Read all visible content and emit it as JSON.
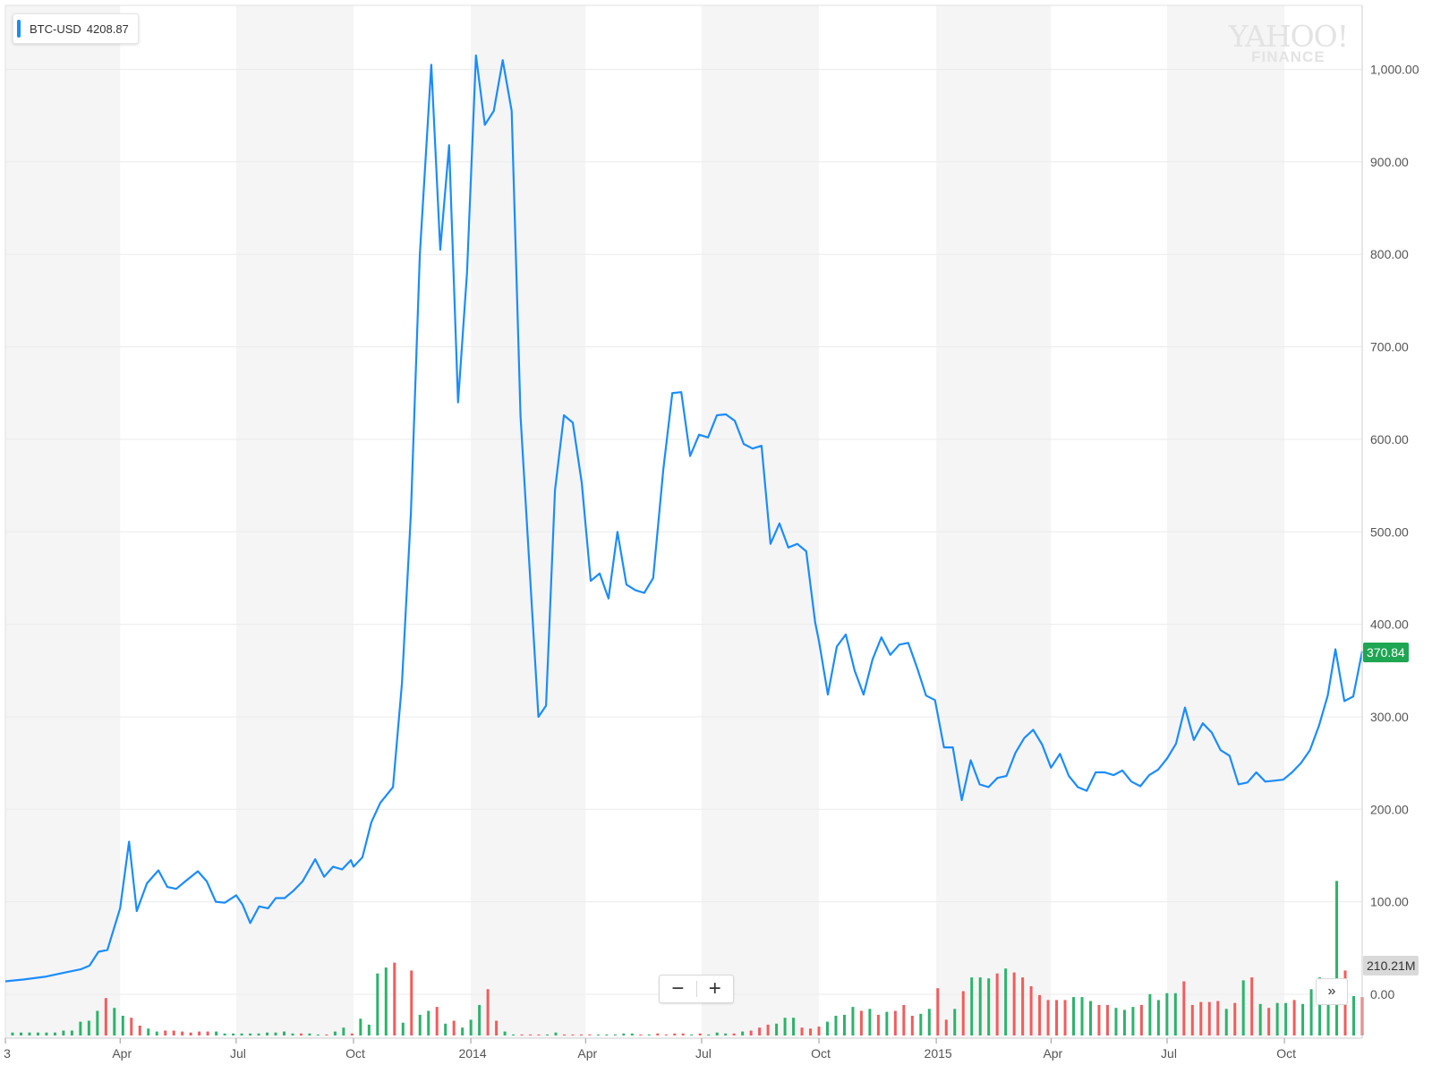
{
  "legend": {
    "symbol": "BTC-USD",
    "price": "4208.87"
  },
  "watermark": {
    "brand_top": "YAHOO!",
    "brand_bottom": "FINANCE"
  },
  "current_price_label": "370.84",
  "current_volume_label": "210.21M",
  "controls": {
    "zoom_out": "−",
    "zoom_in": "+",
    "expand": "»"
  },
  "colors": {
    "line": "#1a8cff",
    "volume_up": "#2db36b",
    "volume_down": "#f25c5c",
    "price_tag": "#1fa653",
    "shade": "#f5f5f5",
    "grid": "#ebebeb"
  },
  "chart_data": {
    "type": "line",
    "symbol": "BTC-USD",
    "y_axis": {
      "ticks": [
        "0.00",
        "100.00",
        "200.00",
        "300.00",
        "400.00",
        "500.00",
        "600.00",
        "700.00",
        "800.00",
        "900.00",
        "1,000.00"
      ],
      "ylim": [
        0,
        1050
      ]
    },
    "x_axis": {
      "ticks": [
        {
          "label": "3",
          "date": "2013-01-01"
        },
        {
          "label": "Apr",
          "date": "2013-04-01"
        },
        {
          "label": "Jul",
          "date": "2013-07-01"
        },
        {
          "label": "Oct",
          "date": "2013-10-01"
        },
        {
          "label": "2014",
          "date": "2014-01-01"
        },
        {
          "label": "Apr",
          "date": "2014-04-01"
        },
        {
          "label": "Jul",
          "date": "2014-07-01"
        },
        {
          "label": "Oct",
          "date": "2014-10-01"
        },
        {
          "label": "2015",
          "date": "2015-01-01"
        },
        {
          "label": "Apr",
          "date": "2015-04-01"
        },
        {
          "label": "Jul",
          "date": "2015-07-01"
        },
        {
          "label": "Oct",
          "date": "2015-10-01"
        }
      ]
    },
    "series": [
      {
        "values": [
          [
            "2013-01-01",
            14
          ],
          [
            "2013-01-15",
            16
          ],
          [
            "2013-02-01",
            19
          ],
          [
            "2013-02-15",
            23
          ],
          [
            "2013-03-01",
            27
          ],
          [
            "2013-03-08",
            31
          ],
          [
            "2013-03-15",
            46
          ],
          [
            "2013-03-22",
            48
          ],
          [
            "2013-04-01",
            93
          ],
          [
            "2013-04-08",
            165
          ],
          [
            "2013-04-14",
            90
          ],
          [
            "2013-04-22",
            120
          ],
          [
            "2013-05-01",
            134
          ],
          [
            "2013-05-08",
            116
          ],
          [
            "2013-05-15",
            114
          ],
          [
            "2013-05-22",
            122
          ],
          [
            "2013-06-01",
            133
          ],
          [
            "2013-06-08",
            122
          ],
          [
            "2013-06-15",
            100
          ],
          [
            "2013-06-22",
            99
          ],
          [
            "2013-07-01",
            107
          ],
          [
            "2013-07-06",
            97
          ],
          [
            "2013-07-12",
            77
          ],
          [
            "2013-07-19",
            95
          ],
          [
            "2013-07-26",
            93
          ],
          [
            "2013-08-01",
            104
          ],
          [
            "2013-08-08",
            104
          ],
          [
            "2013-08-15",
            112
          ],
          [
            "2013-08-22",
            122
          ],
          [
            "2013-09-01",
            146
          ],
          [
            "2013-09-08",
            127
          ],
          [
            "2013-09-15",
            138
          ],
          [
            "2013-09-22",
            135
          ],
          [
            "2013-09-29",
            145
          ],
          [
            "2013-10-01",
            138
          ],
          [
            "2013-10-08",
            148
          ],
          [
            "2013-10-15",
            186
          ],
          [
            "2013-10-22",
            207
          ],
          [
            "2013-11-01",
            224
          ],
          [
            "2013-11-08",
            336
          ],
          [
            "2013-11-15",
            520
          ],
          [
            "2013-11-22",
            800
          ],
          [
            "2013-12-01",
            1005
          ],
          [
            "2013-12-08",
            805
          ],
          [
            "2013-12-15",
            918
          ],
          [
            "2013-12-22",
            640
          ],
          [
            "2013-12-29",
            780
          ],
          [
            "2014-01-05",
            1015
          ],
          [
            "2014-01-12",
            940
          ],
          [
            "2014-01-19",
            955
          ],
          [
            "2014-01-26",
            1010
          ],
          [
            "2014-02-02",
            955
          ],
          [
            "2014-02-09",
            625
          ],
          [
            "2014-02-23",
            300
          ],
          [
            "2014-03-01",
            312
          ],
          [
            "2014-03-08",
            545
          ],
          [
            "2014-03-15",
            626
          ],
          [
            "2014-03-22",
            618
          ],
          [
            "2014-03-29",
            553
          ],
          [
            "2014-04-05",
            447
          ],
          [
            "2014-04-12",
            455
          ],
          [
            "2014-04-19",
            428
          ],
          [
            "2014-04-26",
            500
          ],
          [
            "2014-05-03",
            443
          ],
          [
            "2014-05-10",
            437
          ],
          [
            "2014-05-17",
            434
          ],
          [
            "2014-05-24",
            450
          ],
          [
            "2014-06-01",
            568
          ],
          [
            "2014-06-08",
            650
          ],
          [
            "2014-06-15",
            651
          ],
          [
            "2014-06-22",
            582
          ],
          [
            "2014-06-29",
            605
          ],
          [
            "2014-07-06",
            602
          ],
          [
            "2014-07-13",
            626
          ],
          [
            "2014-07-20",
            627
          ],
          [
            "2014-07-27",
            620
          ],
          [
            "2014-08-03",
            595
          ],
          [
            "2014-08-10",
            590
          ],
          [
            "2014-08-17",
            593
          ],
          [
            "2014-08-24",
            487
          ],
          [
            "2014-08-31",
            509
          ],
          [
            "2014-09-07",
            483
          ],
          [
            "2014-09-14",
            487
          ],
          [
            "2014-09-21",
            479
          ],
          [
            "2014-09-28",
            402
          ],
          [
            "2014-10-01",
            382
          ],
          [
            "2014-10-08",
            324
          ],
          [
            "2014-10-15",
            376
          ],
          [
            "2014-10-22",
            389
          ],
          [
            "2014-10-29",
            350
          ],
          [
            "2014-11-05",
            324
          ],
          [
            "2014-11-12",
            362
          ],
          [
            "2014-11-19",
            386
          ],
          [
            "2014-11-26",
            367
          ],
          [
            "2014-12-03",
            378
          ],
          [
            "2014-12-10",
            380
          ],
          [
            "2014-12-17",
            353
          ],
          [
            "2014-12-24",
            323
          ],
          [
            "2014-12-31",
            318
          ],
          [
            "2015-01-07",
            267
          ],
          [
            "2015-01-14",
            267
          ],
          [
            "2015-01-21",
            210
          ],
          [
            "2015-01-28",
            253
          ],
          [
            "2015-02-04",
            227
          ],
          [
            "2015-02-11",
            224
          ],
          [
            "2015-02-18",
            234
          ],
          [
            "2015-02-25",
            236
          ],
          [
            "2015-03-04",
            261
          ],
          [
            "2015-03-11",
            277
          ],
          [
            "2015-03-18",
            286
          ],
          [
            "2015-03-25",
            270
          ],
          [
            "2015-04-01",
            245
          ],
          [
            "2015-04-08",
            260
          ],
          [
            "2015-04-15",
            236
          ],
          [
            "2015-04-22",
            224
          ],
          [
            "2015-04-29",
            220
          ],
          [
            "2015-05-06",
            240
          ],
          [
            "2015-05-13",
            240
          ],
          [
            "2015-05-20",
            237
          ],
          [
            "2015-05-27",
            242
          ],
          [
            "2015-06-03",
            230
          ],
          [
            "2015-06-10",
            225
          ],
          [
            "2015-06-17",
            237
          ],
          [
            "2015-06-24",
            243
          ],
          [
            "2015-07-01",
            255
          ],
          [
            "2015-07-08",
            271
          ],
          [
            "2015-07-15",
            310
          ],
          [
            "2015-07-22",
            275
          ],
          [
            "2015-07-29",
            293
          ],
          [
            "2015-08-05",
            283
          ],
          [
            "2015-08-12",
            264
          ],
          [
            "2015-08-19",
            258
          ],
          [
            "2015-08-26",
            227
          ],
          [
            "2015-09-02",
            229
          ],
          [
            "2015-09-09",
            240
          ],
          [
            "2015-09-16",
            230
          ],
          [
            "2015-09-23",
            231
          ],
          [
            "2015-09-30",
            232
          ],
          [
            "2015-10-07",
            240
          ],
          [
            "2015-10-14",
            250
          ],
          [
            "2015-10-21",
            264
          ],
          [
            "2015-10-28",
            290
          ],
          [
            "2015-11-04",
            323
          ],
          [
            "2015-11-10",
            373
          ],
          [
            "2015-11-17",
            317
          ],
          [
            "2015-11-24",
            322
          ],
          [
            "2015-12-01",
            370.84
          ]
        ]
      }
    ],
    "volume": [
      [
        0.3,
        "up"
      ],
      [
        0.3,
        "up"
      ],
      [
        0.3,
        "up"
      ],
      [
        0.3,
        "up"
      ],
      [
        0.3,
        "up"
      ],
      [
        0.3,
        "up"
      ],
      [
        0.5,
        "up"
      ],
      [
        0.5,
        "up"
      ],
      [
        1.4,
        "up"
      ],
      [
        1.5,
        "up"
      ],
      [
        2.5,
        "up"
      ],
      [
        3.8,
        "down"
      ],
      [
        2.8,
        "up"
      ],
      [
        2.0,
        "up"
      ],
      [
        1.8,
        "down"
      ],
      [
        1.0,
        "down"
      ],
      [
        0.7,
        "up"
      ],
      [
        0.4,
        "up"
      ],
      [
        0.5,
        "down"
      ],
      [
        0.5,
        "down"
      ],
      [
        0.4,
        "down"
      ],
      [
        0.3,
        "down"
      ],
      [
        0.4,
        "down"
      ],
      [
        0.4,
        "down"
      ],
      [
        0.4,
        "up"
      ],
      [
        0.2,
        "up"
      ],
      [
        0.2,
        "up"
      ],
      [
        0.2,
        "up"
      ],
      [
        0.2,
        "up"
      ],
      [
        0.2,
        "up"
      ],
      [
        0.3,
        "up"
      ],
      [
        0.3,
        "up"
      ],
      [
        0.4,
        "up"
      ],
      [
        0.2,
        "up"
      ],
      [
        0.2,
        "down"
      ],
      [
        0.2,
        "up"
      ],
      [
        0.1,
        "up"
      ],
      [
        0.1,
        "down"
      ],
      [
        0.4,
        "up"
      ],
      [
        0.8,
        "up"
      ],
      [
        0.2,
        "down"
      ],
      [
        1.7,
        "up"
      ],
      [
        1.1,
        "up"
      ],
      [
        6.3,
        "up"
      ],
      [
        6.9,
        "up"
      ],
      [
        7.4,
        "down"
      ],
      [
        1.3,
        "up"
      ],
      [
        6.6,
        "down"
      ],
      [
        2.1,
        "up"
      ],
      [
        2.5,
        "up"
      ],
      [
        2.9,
        "down"
      ],
      [
        1.2,
        "up"
      ],
      [
        1.5,
        "down"
      ],
      [
        0.8,
        "up"
      ],
      [
        1.6,
        "up"
      ],
      [
        3.1,
        "up"
      ],
      [
        4.7,
        "down"
      ],
      [
        1.5,
        "down"
      ],
      [
        0.4,
        "up"
      ],
      [
        0.1,
        "up"
      ],
      [
        0.1,
        "down"
      ],
      [
        0.1,
        "down"
      ],
      [
        0.1,
        "down"
      ],
      [
        0.1,
        "up"
      ],
      [
        0.3,
        "up"
      ],
      [
        0.1,
        "down"
      ],
      [
        0.1,
        "down"
      ],
      [
        0.1,
        "down"
      ],
      [
        0.1,
        "down"
      ],
      [
        0.1,
        "up"
      ],
      [
        0.1,
        "up"
      ],
      [
        0.1,
        "up"
      ],
      [
        0.2,
        "up"
      ],
      [
        0.2,
        "up"
      ],
      [
        0.1,
        "down"
      ],
      [
        0.1,
        "up"
      ],
      [
        0.2,
        "down"
      ],
      [
        0.1,
        "down"
      ],
      [
        0.2,
        "down"
      ],
      [
        0.2,
        "down"
      ],
      [
        0.1,
        "up"
      ],
      [
        0.2,
        "down"
      ],
      [
        0.1,
        "up"
      ],
      [
        0.3,
        "up"
      ],
      [
        0.2,
        "up"
      ],
      [
        0.2,
        "down"
      ],
      [
        0.4,
        "up"
      ],
      [
        0.5,
        "down"
      ],
      [
        0.8,
        "down"
      ],
      [
        1.1,
        "down"
      ],
      [
        1.2,
        "up"
      ],
      [
        1.8,
        "up"
      ],
      [
        1.8,
        "up"
      ],
      [
        0.8,
        "down"
      ],
      [
        0.7,
        "down"
      ],
      [
        0.9,
        "down"
      ],
      [
        1.4,
        "up"
      ],
      [
        2.0,
        "up"
      ],
      [
        2.1,
        "up"
      ],
      [
        2.9,
        "up"
      ],
      [
        2.5,
        "down"
      ],
      [
        2.7,
        "up"
      ],
      [
        2.1,
        "down"
      ],
      [
        2.4,
        "up"
      ],
      [
        2.5,
        "down"
      ],
      [
        3.1,
        "down"
      ],
      [
        2.0,
        "down"
      ],
      [
        2.2,
        "up"
      ],
      [
        2.7,
        "up"
      ],
      [
        4.8,
        "down"
      ],
      [
        1.6,
        "down"
      ],
      [
        2.7,
        "up"
      ],
      [
        4.5,
        "down"
      ],
      [
        5.9,
        "up"
      ],
      [
        5.9,
        "up"
      ],
      [
        5.8,
        "up"
      ],
      [
        6.3,
        "down"
      ],
      [
        6.8,
        "up"
      ],
      [
        6.4,
        "down"
      ],
      [
        5.9,
        "down"
      ],
      [
        5.0,
        "down"
      ],
      [
        4.1,
        "down"
      ],
      [
        3.6,
        "down"
      ],
      [
        3.6,
        "down"
      ],
      [
        3.6,
        "down"
      ],
      [
        3.9,
        "up"
      ],
      [
        3.9,
        "up"
      ],
      [
        3.5,
        "up"
      ],
      [
        3.1,
        "down"
      ],
      [
        3.1,
        "down"
      ],
      [
        2.8,
        "up"
      ],
      [
        2.6,
        "up"
      ],
      [
        2.9,
        "up"
      ],
      [
        3.1,
        "down"
      ],
      [
        4.2,
        "up"
      ],
      [
        3.6,
        "up"
      ],
      [
        4.3,
        "up"
      ],
      [
        4.3,
        "up"
      ],
      [
        5.5,
        "down"
      ],
      [
        3.1,
        "down"
      ],
      [
        3.4,
        "down"
      ],
      [
        3.4,
        "down"
      ],
      [
        3.5,
        "down"
      ],
      [
        2.7,
        "up"
      ],
      [
        3.3,
        "down"
      ],
      [
        5.6,
        "up"
      ],
      [
        5.9,
        "down"
      ],
      [
        3.2,
        "up"
      ],
      [
        2.8,
        "down"
      ],
      [
        3.3,
        "up"
      ],
      [
        3.3,
        "up"
      ],
      [
        3.6,
        "down"
      ],
      [
        3.2,
        "up"
      ],
      [
        4.7,
        "up"
      ],
      [
        5.9,
        "up"
      ],
      [
        3.4,
        "up"
      ],
      [
        15.7,
        "up"
      ],
      [
        6.6,
        "down"
      ],
      [
        4.0,
        "up"
      ],
      [
        3.9,
        "down"
      ]
    ]
  }
}
